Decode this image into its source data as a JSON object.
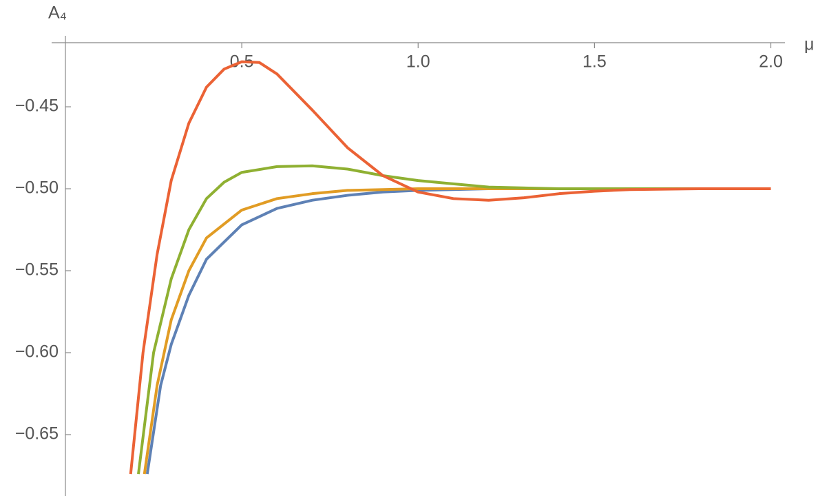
{
  "chart_data": {
    "type": "line",
    "x_label": "μ",
    "y_label": "A₄",
    "xlim": [
      0,
      2.04
    ],
    "ylim": [
      -0.6874,
      -0.4109
    ],
    "xticks": [
      0.5,
      {
        "value": 1,
        "label": "1.0"
      },
      1.5,
      {
        "value": 2,
        "label": "2.0"
      }
    ],
    "yticks": [
      {
        "value": -0.45,
        "label": "−0.45"
      },
      {
        "value": -0.5,
        "label": "−0.50"
      },
      {
        "value": -0.55,
        "label": "−0.55"
      },
      {
        "value": -0.6,
        "label": "−0.60"
      },
      {
        "value": -0.65,
        "label": "−0.65"
      }
    ],
    "series": [
      {
        "color": "#5e81b5",
        "x": [
          0.232,
          0.27,
          0.3,
          0.35,
          0.4,
          0.5,
          0.6,
          0.7,
          0.8,
          0.9,
          1.0,
          1.2,
          2.0
        ],
        "values": [
          -0.674,
          -0.62,
          -0.595,
          -0.565,
          -0.543,
          -0.522,
          -0.512,
          -0.507,
          -0.504,
          -0.502,
          -0.501,
          -0.5,
          -0.5
        ]
      },
      {
        "color": "#e19c24",
        "x": [
          0.224,
          0.26,
          0.3,
          0.35,
          0.4,
          0.5,
          0.6,
          0.7,
          0.8,
          0.9,
          1.0,
          2.0
        ],
        "values": [
          -0.674,
          -0.62,
          -0.58,
          -0.55,
          -0.53,
          -0.513,
          -0.506,
          -0.503,
          -0.501,
          -0.5005,
          -0.5,
          -0.5
        ]
      },
      {
        "color": "#8fb032",
        "x": [
          0.207,
          0.25,
          0.3,
          0.35,
          0.4,
          0.45,
          0.5,
          0.6,
          0.7,
          0.8,
          0.9,
          1.0,
          1.2,
          1.4,
          2.0
        ],
        "values": [
          -0.674,
          -0.6,
          -0.555,
          -0.525,
          -0.506,
          -0.496,
          -0.49,
          -0.4865,
          -0.486,
          -0.488,
          -0.492,
          -0.495,
          -0.499,
          -0.5,
          -0.5
        ]
      },
      {
        "color": "#eb6235",
        "x": [
          0.185,
          0.22,
          0.26,
          0.3,
          0.35,
          0.4,
          0.45,
          0.5,
          0.55,
          0.6,
          0.7,
          0.8,
          0.9,
          1.0,
          1.1,
          1.2,
          1.3,
          1.4,
          1.5,
          1.6,
          1.8,
          2.0
        ],
        "values": [
          -0.674,
          -0.6,
          -0.54,
          -0.495,
          -0.46,
          -0.438,
          -0.427,
          -0.4225,
          -0.423,
          -0.43,
          -0.452,
          -0.475,
          -0.492,
          -0.502,
          -0.506,
          -0.507,
          -0.5055,
          -0.503,
          -0.5015,
          -0.5005,
          -0.5,
          -0.5
        ]
      }
    ]
  }
}
